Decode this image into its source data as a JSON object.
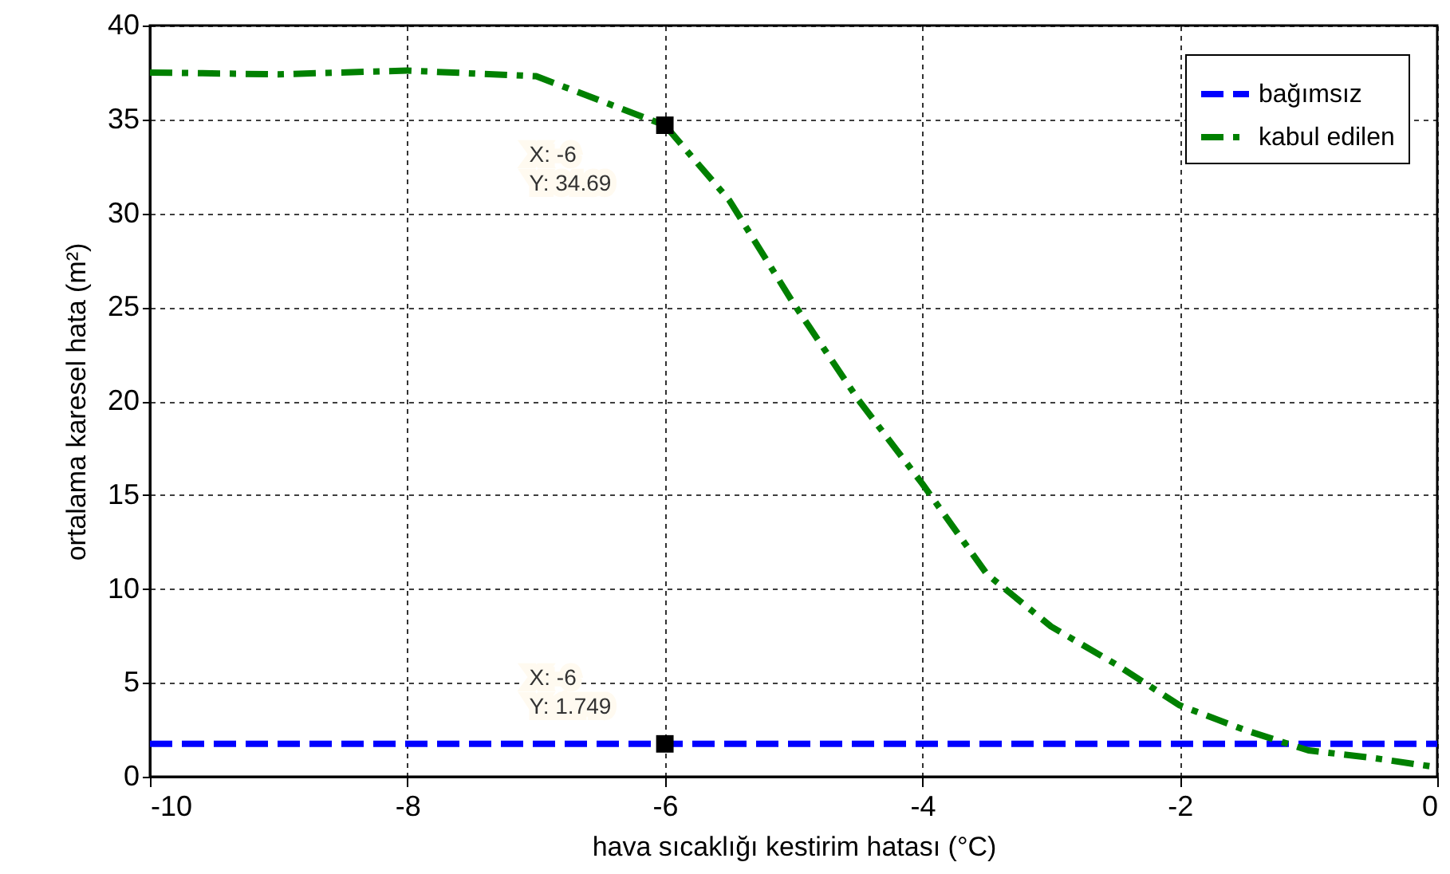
{
  "chart_data": {
    "type": "line",
    "xlabel": "hava sıcaklığı kestirim hatası (°C)",
    "ylabel": "ortalama karesel hata (m²)",
    "xlim": [
      -10,
      0
    ],
    "ylim": [
      0,
      40
    ],
    "xticks": [
      -10,
      -8,
      -6,
      -4,
      -2,
      0
    ],
    "yticks": [
      0,
      5,
      10,
      15,
      20,
      25,
      30,
      35,
      40
    ],
    "grid": true,
    "legend": "top right",
    "series": [
      {
        "name": "bağımsız",
        "color": "#0000ff",
        "line_style": "dashed",
        "x": [
          -10,
          0
        ],
        "values": [
          1.749,
          1.749
        ]
      },
      {
        "name": "kabul edilen",
        "color": "#008000",
        "line_style": "dashdot",
        "x": [
          -10,
          -9,
          -8,
          -7,
          -6,
          -5.5,
          -5,
          -4.5,
          -4,
          -3.5,
          -3,
          -2.5,
          -2,
          -1.5,
          -1,
          -0.5,
          0
        ],
        "values": [
          37.5,
          37.4,
          37.6,
          37.3,
          34.69,
          30.7,
          25.2,
          20.1,
          15.6,
          10.8,
          8.0,
          6.0,
          3.8,
          2.5,
          1.4,
          1.0,
          0.5
        ]
      }
    ],
    "annotations": [
      {
        "text": "X: -6\nY: 34.69",
        "x": -6,
        "y": 34.69
      },
      {
        "text": "X: -6\nY: 1.749",
        "x": -6,
        "y": 1.749
      }
    ]
  }
}
